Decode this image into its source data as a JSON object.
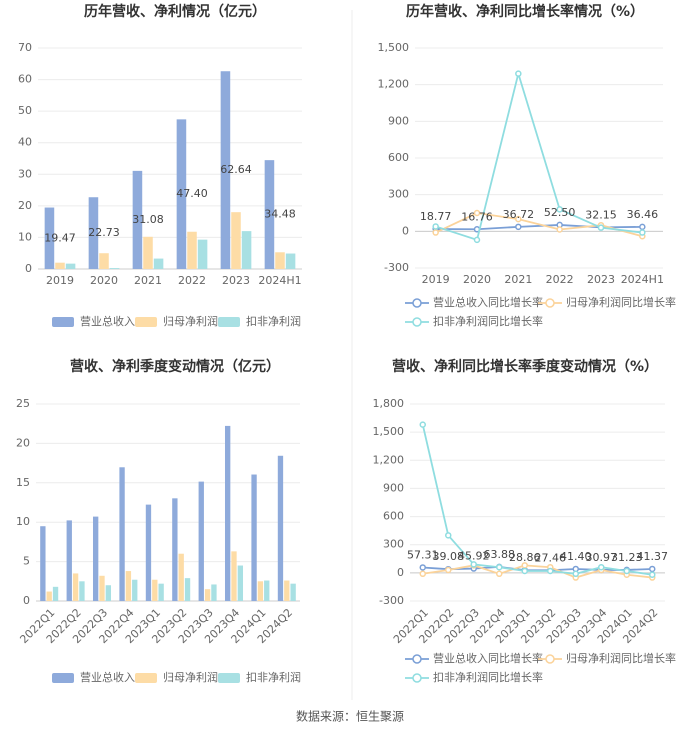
{
  "chart_data": [
    {
      "type": "bar",
      "title": "历年营收、净利情况（亿元）",
      "categories": [
        "2019",
        "2020",
        "2021",
        "2022",
        "2023",
        "2024H1"
      ],
      "ylim": [
        0,
        70
      ],
      "yticks": [
        0,
        10,
        20,
        30,
        40,
        50,
        60,
        70
      ],
      "grid": true,
      "series": [
        {
          "name": "营业总收入",
          "color": "#8eaadb",
          "values": [
            19.47,
            22.73,
            31.08,
            47.4,
            62.64,
            34.48
          ],
          "value_labels": [
            "19.47",
            "22.73",
            "31.08",
            "47.40",
            "62.64",
            "34.48"
          ]
        },
        {
          "name": "归母净利润",
          "color": "#fddca6",
          "values": [
            2.0,
            5.0,
            10.2,
            11.8,
            18.0,
            5.3
          ]
        },
        {
          "name": "扣非净利润",
          "color": "#a8e0e3",
          "values": [
            1.7,
            0.3,
            3.3,
            9.3,
            12.0,
            4.9
          ]
        }
      ]
    },
    {
      "type": "line",
      "title": "历年营收、净利同比增长率情况（%）",
      "categories": [
        "2019",
        "2020",
        "2021",
        "2022",
        "2023",
        "2024H1"
      ],
      "ylim": [
        -300,
        1500
      ],
      "yticks": [
        -300,
        0,
        300,
        600,
        900,
        {
          "value": 1200,
          "label": "1,200"
        },
        {
          "value": 1500,
          "label": "1,500"
        }
      ],
      "grid": true,
      "series": [
        {
          "name": "营业总收入同比增长率",
          "color": "#7a9fd6",
          "values": [
            18.77,
            16.76,
            36.72,
            52.5,
            32.15,
            36.46
          ],
          "value_labels": [
            "18.77",
            "16.76",
            "36.72",
            "52.50",
            "32.15",
            "36.46"
          ]
        },
        {
          "name": "归母净利润同比增长率",
          "color": "#fbd39a",
          "values": [
            -10,
            150,
            100,
            15,
            50,
            -40
          ]
        },
        {
          "name": "扣非净利润同比增长率",
          "color": "#8fdde0",
          "values": [
            40,
            -70,
            1290,
            180,
            30,
            -10
          ]
        }
      ]
    },
    {
      "type": "bar",
      "title": "营收、净利季度变动情况（亿元）",
      "categories": [
        "2022Q1",
        "2022Q2",
        "2022Q3",
        "2022Q4",
        "2023Q1",
        "2023Q2",
        "2023Q3",
        "2023Q4",
        "2024Q1",
        "2024Q2"
      ],
      "ylim": [
        0,
        25
      ],
      "yticks": [
        0,
        5,
        10,
        15,
        20,
        25
      ],
      "grid": true,
      "rotate_labels": true,
      "series": [
        {
          "name": "营业总收入",
          "color": "#8eaadb",
          "values": [
            9.49,
            10.23,
            10.71,
            16.97,
            12.23,
            13.03,
            15.15,
            22.22,
            16.05,
            18.43
          ]
        },
        {
          "name": "归母净利润",
          "color": "#fddca6",
          "values": [
            1.2,
            3.5,
            3.2,
            3.8,
            2.7,
            6.0,
            1.5,
            6.3,
            2.5,
            2.6
          ]
        },
        {
          "name": "扣非净利润",
          "color": "#a8e0e3",
          "values": [
            1.8,
            2.5,
            2.0,
            2.7,
            2.2,
            2.9,
            2.1,
            4.5,
            2.6,
            2.2
          ]
        }
      ]
    },
    {
      "type": "line",
      "title": "营收、净利同比增长率季度变动情况（%）",
      "categories": [
        "2022Q1",
        "2022Q2",
        "2022Q3",
        "2022Q4",
        "2023Q1",
        "2023Q2",
        "2023Q3",
        "2023Q4",
        "2024Q1",
        "2024Q2"
      ],
      "ylim": [
        -300,
        1800
      ],
      "yticks": [
        -300,
        0,
        300,
        600,
        900,
        {
          "value": 1200,
          "label": "1,200"
        },
        {
          "value": 1500,
          "label": "1,500"
        },
        {
          "value": 1800,
          "label": "1,800"
        }
      ],
      "grid": true,
      "rotate_labels": true,
      "series": [
        {
          "name": "营业总收入同比增长率",
          "color": "#7a9fd6",
          "values": [
            57.31,
            39.08,
            45.92,
            63.88,
            28.86,
            27.46,
            41.4,
            30.97,
            31.23,
            41.37
          ],
          "value_labels": [
            "57.31",
            "39.08",
            "45.92",
            "63.88",
            "28.86",
            "27.46",
            "41.40",
            "30.97",
            "31.23",
            "41.37"
          ]
        },
        {
          "name": "归母净利润同比增长率",
          "color": "#fbd39a",
          "values": [
            -10,
            30,
            80,
            -10,
            80,
            60,
            -50,
            30,
            -20,
            -50
          ]
        },
        {
          "name": "扣非净利润同比增长率",
          "color": "#8fdde0",
          "values": [
            1580,
            400,
            90,
            60,
            20,
            20,
            -10,
            60,
            20,
            -20
          ]
        }
      ]
    }
  ],
  "source": "数据来源：恒生聚源"
}
